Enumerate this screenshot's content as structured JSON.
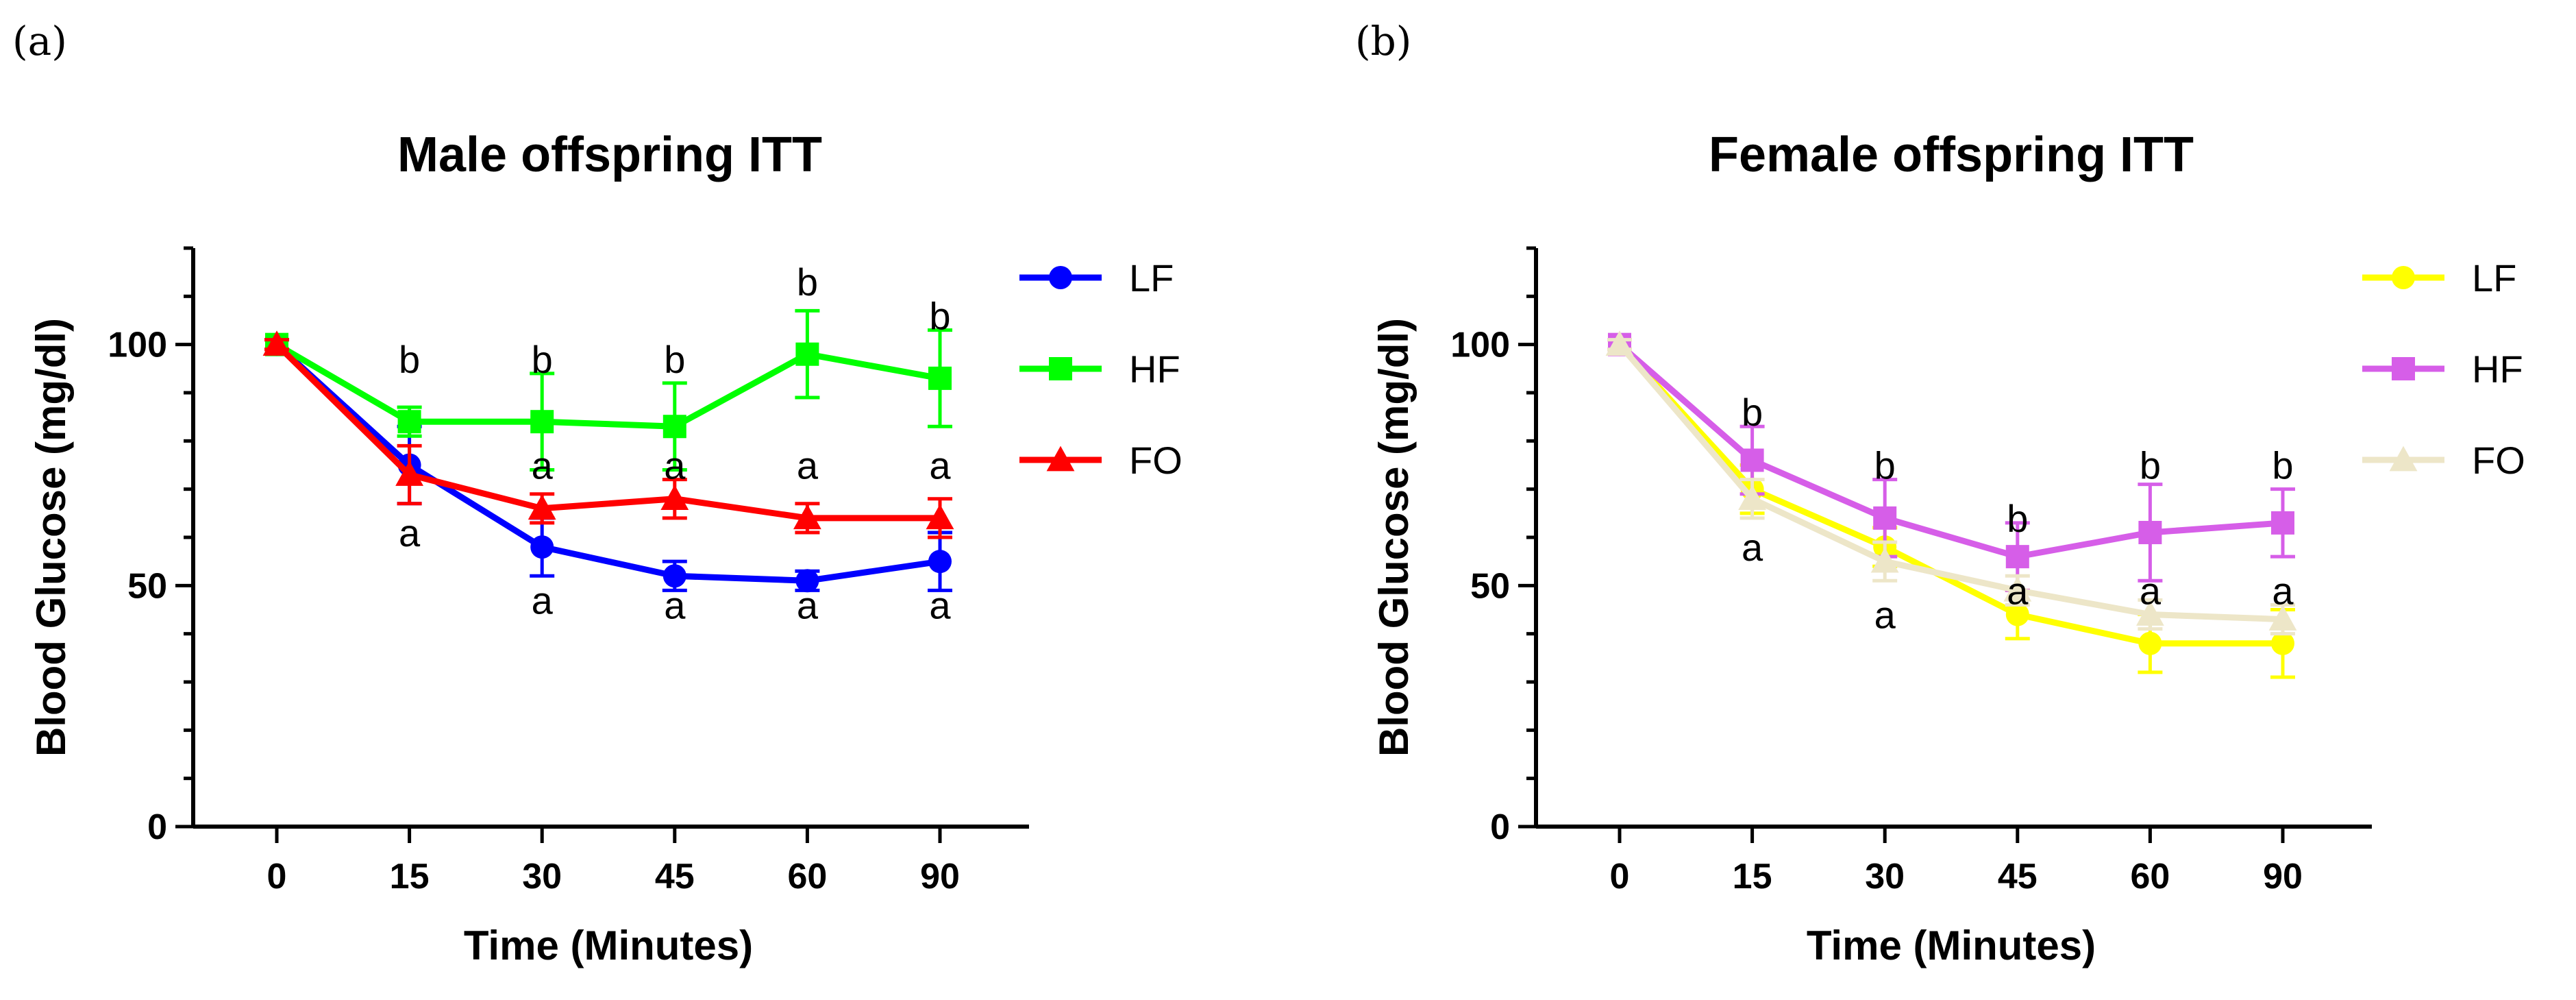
{
  "chart_data": [
    {
      "type": "line",
      "panel_label": "(a)",
      "title": "Male offspring ITT",
      "xlabel": "Time (Minutes)",
      "ylabel": "Blood Glucose (mg/dl)",
      "categories": [
        "0",
        "15",
        "30",
        "45",
        "60",
        "90"
      ],
      "yticks": [
        "0",
        "50",
        "100"
      ],
      "ylim": [
        0,
        120
      ],
      "series": [
        {
          "name": "LF",
          "color": "#0000ff",
          "marker": "circle",
          "values": [
            100,
            75,
            58,
            52,
            51,
            55
          ],
          "errors": [
            1,
            8,
            6,
            3,
            2,
            6
          ]
        },
        {
          "name": "HF",
          "color": "#00ff00",
          "marker": "square",
          "values": [
            100,
            84,
            84,
            83,
            98,
            93
          ],
          "errors": [
            1,
            3,
            10,
            9,
            9,
            10
          ]
        },
        {
          "name": "FO",
          "color": "#ff0000",
          "marker": "triangle",
          "values": [
            100,
            73,
            66,
            68,
            64,
            64
          ],
          "errors": [
            1,
            6,
            3,
            4,
            3,
            4
          ]
        }
      ],
      "annotations": [
        {
          "text": "b",
          "x": "15",
          "y": 97
        },
        {
          "text": "a",
          "x": "15",
          "y": 61
        },
        {
          "text": "b",
          "x": "30",
          "y": 97
        },
        {
          "text": "a",
          "x": "30",
          "y": 75
        },
        {
          "text": "a",
          "x": "30",
          "y": 47
        },
        {
          "text": "b",
          "x": "45",
          "y": 97
        },
        {
          "text": "a",
          "x": "45",
          "y": 75
        },
        {
          "text": "a",
          "x": "45",
          "y": 46
        },
        {
          "text": "b",
          "x": "60",
          "y": 113
        },
        {
          "text": "a",
          "x": "60",
          "y": 75
        },
        {
          "text": "a",
          "x": "60",
          "y": 46
        },
        {
          "text": "b",
          "x": "90",
          "y": 106
        },
        {
          "text": "a",
          "x": "90",
          "y": 75
        },
        {
          "text": "a",
          "x": "90",
          "y": 46
        }
      ]
    },
    {
      "type": "line",
      "panel_label": "(b)",
      "title": "Female offspring ITT",
      "xlabel": "Time (Minutes)",
      "ylabel": "Blood Glucose (mg/dl)",
      "categories": [
        "0",
        "15",
        "30",
        "45",
        "60",
        "90"
      ],
      "yticks": [
        "0",
        "50",
        "100"
      ],
      "ylim": [
        0,
        120
      ],
      "series": [
        {
          "name": "LF",
          "color": "#ffff00",
          "marker": "circle",
          "values": [
            100,
            70,
            58,
            44,
            38,
            38
          ],
          "errors": [
            1,
            5,
            4,
            5,
            6,
            7
          ]
        },
        {
          "name": "HF",
          "color": "#d65ee8",
          "marker": "square",
          "values": [
            100,
            76,
            64,
            56,
            61,
            63
          ],
          "errors": [
            1,
            7,
            8,
            7,
            10,
            7
          ]
        },
        {
          "name": "FO",
          "color": "#ede6c8",
          "marker": "triangle",
          "values": [
            100,
            68,
            55,
            49,
            44,
            43
          ],
          "errors": [
            1,
            4,
            4,
            3,
            3,
            3
          ]
        }
      ],
      "annotations": [
        {
          "text": "b",
          "x": "15",
          "y": 86
        },
        {
          "text": "a",
          "x": "15",
          "y": 58
        },
        {
          "text": "b",
          "x": "30",
          "y": 75
        },
        {
          "text": "a",
          "x": "30",
          "y": 44
        },
        {
          "text": "b",
          "x": "45",
          "y": 64
        },
        {
          "text": "a",
          "x": "45",
          "y": 49
        },
        {
          "text": "b",
          "x": "60",
          "y": 75
        },
        {
          "text": "a",
          "x": "60",
          "y": 49
        },
        {
          "text": "b",
          "x": "90",
          "y": 75
        },
        {
          "text": "a",
          "x": "90",
          "y": 49
        }
      ]
    }
  ]
}
